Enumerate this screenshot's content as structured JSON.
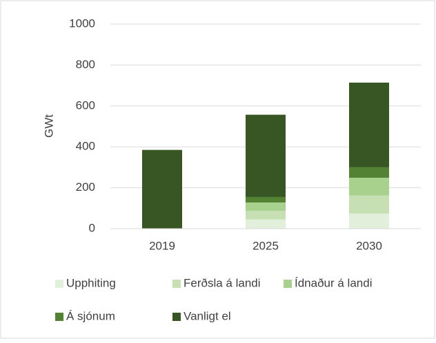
{
  "chart_data": {
    "type": "stacked_bar",
    "y_axis_label": "GWt",
    "categories": [
      "2019",
      "2025",
      "2030"
    ],
    "series": [
      {
        "name": "Upphiting",
        "color": "#e2efda",
        "values": [
          0,
          45,
          74
        ]
      },
      {
        "name": "Ferðsla á landi",
        "color": "#c6e0b4",
        "values": [
          0,
          42,
          88
        ]
      },
      {
        "name": "Ídnaður á landi",
        "color": "#a9d18e",
        "values": [
          0,
          41,
          87
        ]
      },
      {
        "name": "Á sjónum",
        "color": "#548235",
        "values": [
          0,
          27,
          51
        ]
      },
      {
        "name": "Vanligt el",
        "color": "#375623",
        "values": [
          385,
          402,
          414
        ]
      }
    ],
    "ylim": [
      0,
      1000
    ],
    "yticks": [
      0,
      200,
      400,
      600,
      800,
      1000
    ],
    "grid": true
  }
}
